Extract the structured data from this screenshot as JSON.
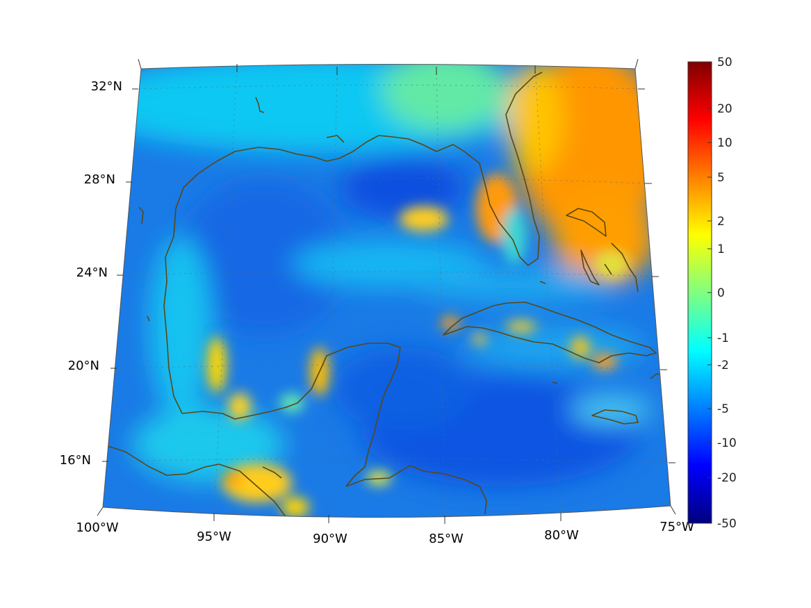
{
  "map": {
    "projection": "lambert conformal conic",
    "region": "Gulf of Mexico and Caribbean",
    "lat_range": [
      14,
      33
    ],
    "lon_range": [
      -100,
      -75
    ],
    "latitude_labels": [
      "32°N",
      "28°N",
      "24°N",
      "20°N",
      "16°N"
    ],
    "longitude_labels": [
      "100°W",
      "95°W",
      "90°W",
      "85°W",
      "80°W",
      "75°W"
    ],
    "coastline_color": "#5a4616",
    "grid": true
  },
  "colorbar": {
    "orientation": "vertical",
    "placement": "right",
    "tick_labels": [
      "50",
      "20",
      "10",
      "5",
      "2",
      "1",
      "0",
      "-1",
      "-2",
      "-5",
      "-10",
      "-20",
      "-50"
    ],
    "colormap": "jet",
    "colors": [
      "#800000",
      "#ff0000",
      "#ff8000",
      "#ffff00",
      "#80ff80",
      "#00ffff",
      "#0080ff",
      "#0000ff",
      "#000080"
    ]
  }
}
